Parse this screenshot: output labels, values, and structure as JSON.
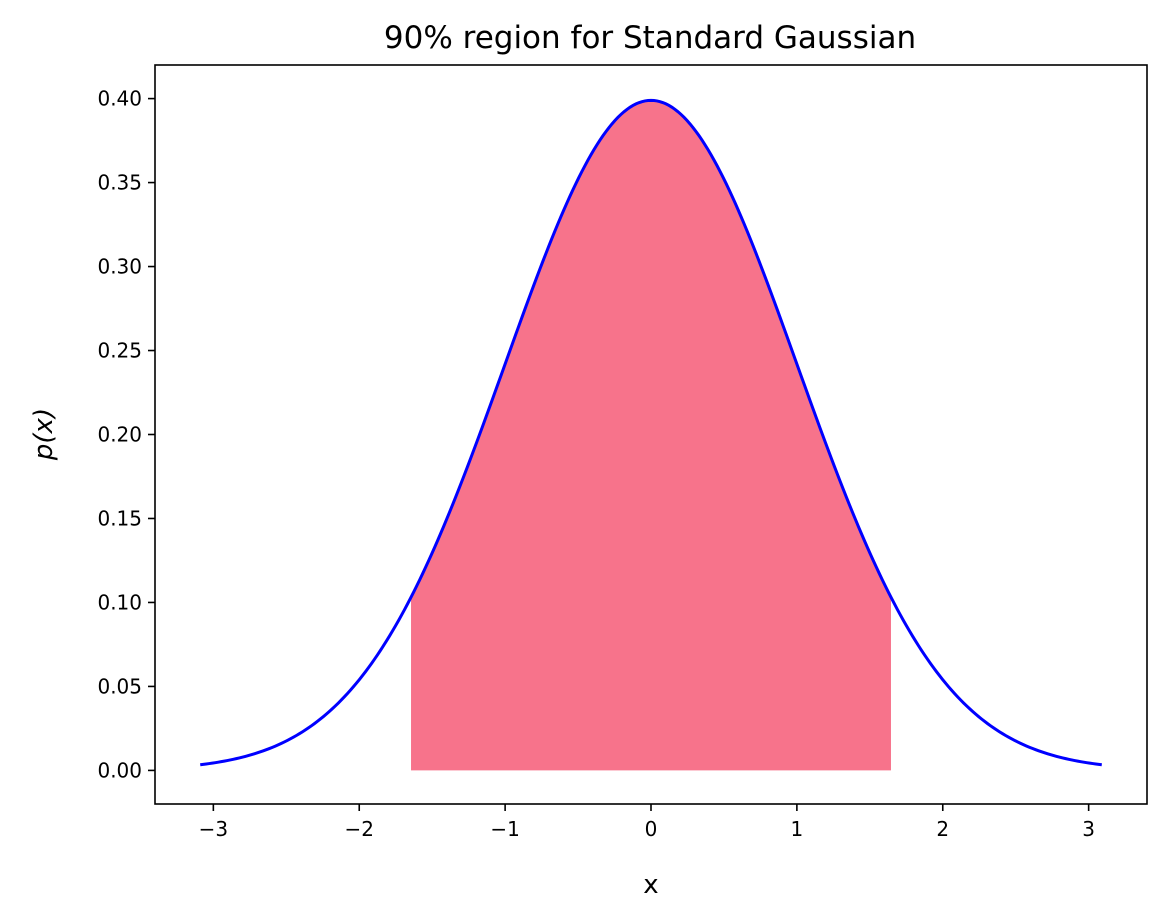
{
  "chart_data": {
    "type": "area",
    "title": "90% region for Standard Gaussian",
    "xlabel": "x",
    "ylabel": "p(x)",
    "xlim": [
      -3.4,
      3.4
    ],
    "ylim": [
      -0.02,
      0.42
    ],
    "grid": false,
    "legend": "none",
    "xticks": [
      -3,
      -2,
      -1,
      0,
      1,
      2,
      3
    ],
    "xtick_labels": [
      "−3",
      "−2",
      "−1",
      "0",
      "1",
      "2",
      "3"
    ],
    "yticks": [
      0.0,
      0.05,
      0.1,
      0.15,
      0.2,
      0.25,
      0.3,
      0.35,
      0.4
    ],
    "ytick_labels": [
      "0.00",
      "0.05",
      "0.10",
      "0.15",
      "0.20",
      "0.25",
      "0.30",
      "0.35",
      "0.40"
    ],
    "curve": {
      "function": "standard normal pdf",
      "x_range": [
        -3.09,
        3.09
      ],
      "color": "#0000ff"
    },
    "shaded_region": {
      "x_range": [
        -1.645,
        1.645
      ],
      "color": "#f7738b"
    }
  }
}
